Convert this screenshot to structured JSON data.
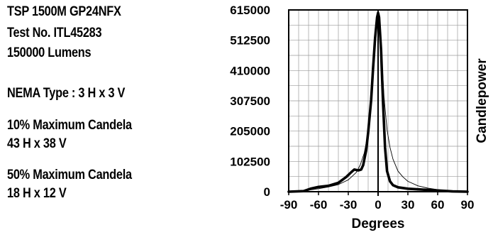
{
  "info": {
    "model": "TSP 1500M GP24NFX",
    "test_no": "Test No. ITL45283",
    "lumens": "150000 Lumens",
    "nema": "NEMA Type : 3 H x 3 V",
    "ten_pct_title": "10% Maximum Candela",
    "ten_pct_value": "43  H x 38  V",
    "fifty_pct_title": "50% Maximum Candela",
    "fifty_pct_value": "18  H x 12  V"
  },
  "chart_data": {
    "type": "line",
    "xlabel": "Degrees",
    "ylabel": "Candlepower",
    "xlim": [
      -90,
      90
    ],
    "ylim": [
      0,
      615000
    ],
    "x_ticks": [
      "-90",
      "-60",
      "-30",
      "0",
      "30",
      "60",
      "90"
    ],
    "y_ticks": [
      "0",
      "102500",
      "205000",
      "307500",
      "410000",
      "512500",
      "615000"
    ],
    "grid": true,
    "series": [
      {
        "style": "thick",
        "points": [
          [
            -90,
            0
          ],
          [
            -75,
            2000
          ],
          [
            -68,
            10000
          ],
          [
            -60,
            16000
          ],
          [
            -50,
            20000
          ],
          [
            -40,
            30000
          ],
          [
            -32,
            50000
          ],
          [
            -27,
            66000
          ],
          [
            -24,
            75000
          ],
          [
            -20,
            72000
          ],
          [
            -17,
            75000
          ],
          [
            -15,
            90000
          ],
          [
            -12,
            140000
          ],
          [
            -10,
            200000
          ],
          [
            -7,
            310000
          ],
          [
            -5,
            420000
          ],
          [
            -3,
            520000
          ],
          [
            -1,
            590000
          ],
          [
            0,
            605000
          ],
          [
            1,
            590000
          ],
          [
            3,
            480000
          ],
          [
            5,
            300000
          ],
          [
            7,
            150000
          ],
          [
            9,
            70000
          ],
          [
            12,
            35000
          ],
          [
            15,
            22000
          ],
          [
            20,
            15000
          ],
          [
            30,
            10000
          ],
          [
            45,
            7000
          ],
          [
            60,
            4000
          ],
          [
            75,
            1000
          ],
          [
            90,
            0
          ]
        ]
      },
      {
        "style": "thin",
        "points": [
          [
            -90,
            0
          ],
          [
            -75,
            3000
          ],
          [
            -60,
            10000
          ],
          [
            -50,
            16000
          ],
          [
            -40,
            24000
          ],
          [
            -30,
            40000
          ],
          [
            -22,
            65000
          ],
          [
            -18,
            90000
          ],
          [
            -14,
            130000
          ],
          [
            -10,
            200000
          ],
          [
            -7,
            300000
          ],
          [
            -4,
            440000
          ],
          [
            -2,
            540000
          ],
          [
            0,
            598000
          ],
          [
            2,
            560000
          ],
          [
            4,
            440000
          ],
          [
            6,
            320000
          ],
          [
            9,
            210000
          ],
          [
            12,
            150000
          ],
          [
            15,
            110000
          ],
          [
            20,
            70000
          ],
          [
            25,
            50000
          ],
          [
            30,
            35000
          ],
          [
            40,
            20000
          ],
          [
            50,
            12000
          ],
          [
            60,
            7000
          ],
          [
            75,
            2000
          ],
          [
            90,
            0
          ]
        ]
      }
    ]
  }
}
